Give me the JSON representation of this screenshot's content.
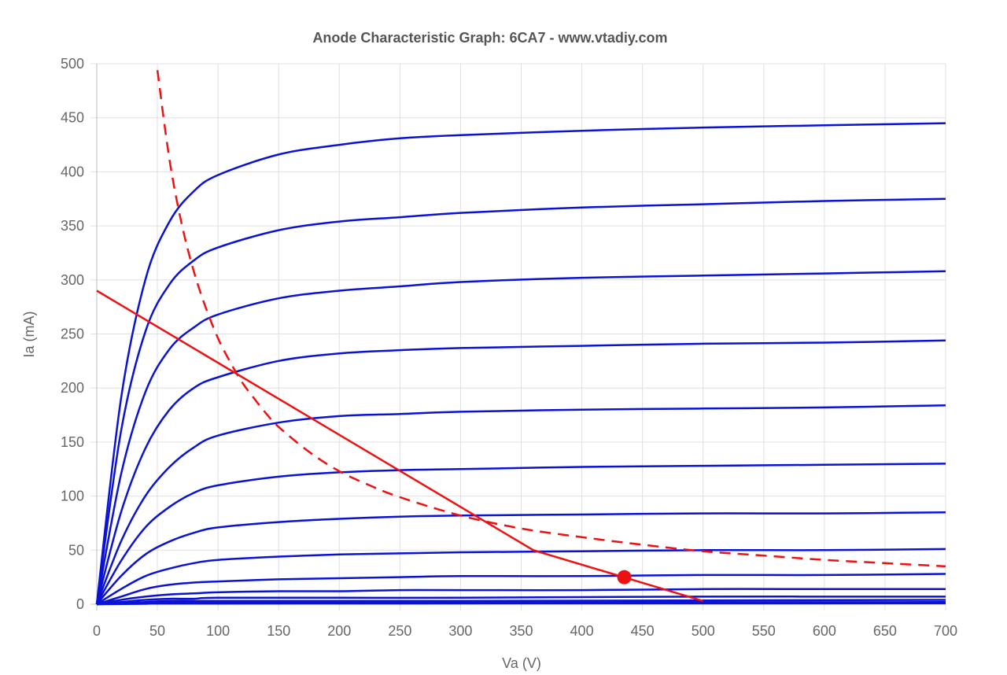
{
  "chart_data": {
    "type": "line",
    "title": "Anode Characteristic Graph: 6CA7 - www.vtadiy.com",
    "xlabel": "Va (V)",
    "ylabel": "Ia (mA)",
    "xlim": [
      0,
      700
    ],
    "ylim": [
      0,
      500
    ],
    "xticks": [
      "0",
      "50",
      "100",
      "150",
      "200",
      "250",
      "300",
      "350",
      "400",
      "450",
      "500",
      "550",
      "600",
      "650",
      "700"
    ],
    "yticks": [
      "0",
      "50",
      "100",
      "150",
      "200",
      "250",
      "300",
      "350",
      "400",
      "450",
      "500"
    ],
    "grid": true,
    "colors": {
      "curves": "#0a12d6",
      "load": "#ee1111",
      "dissipation": "#ee1111"
    },
    "series": [
      {
        "values": [
          [
            0,
            0
          ],
          [
            20,
            190
          ],
          [
            40,
            300
          ],
          [
            60,
            354
          ],
          [
            80,
            382
          ],
          [
            100,
            397
          ],
          [
            150,
            416
          ],
          [
            200,
            425
          ],
          [
            250,
            431
          ],
          [
            300,
            434
          ],
          [
            400,
            438
          ],
          [
            500,
            441
          ],
          [
            600,
            443
          ],
          [
            700,
            445
          ]
        ]
      },
      {
        "values": [
          [
            0,
            0
          ],
          [
            20,
            160
          ],
          [
            40,
            252
          ],
          [
            60,
            296
          ],
          [
            80,
            318
          ],
          [
            100,
            330
          ],
          [
            150,
            346
          ],
          [
            200,
            354
          ],
          [
            250,
            358
          ],
          [
            300,
            362
          ],
          [
            400,
            367
          ],
          [
            500,
            370
          ],
          [
            600,
            373
          ],
          [
            700,
            375
          ]
        ]
      },
      {
        "values": [
          [
            0,
            0
          ],
          [
            20,
            120
          ],
          [
            40,
            196
          ],
          [
            60,
            236
          ],
          [
            80,
            256
          ],
          [
            100,
            268
          ],
          [
            150,
            283
          ],
          [
            200,
            290
          ],
          [
            250,
            294
          ],
          [
            300,
            298
          ],
          [
            400,
            302
          ],
          [
            500,
            304
          ],
          [
            600,
            306
          ],
          [
            700,
            308
          ]
        ]
      },
      {
        "values": [
          [
            0,
            0
          ],
          [
            20,
            85
          ],
          [
            40,
            144
          ],
          [
            60,
            180
          ],
          [
            80,
            200
          ],
          [
            100,
            210
          ],
          [
            150,
            225
          ],
          [
            200,
            232
          ],
          [
            250,
            235
          ],
          [
            300,
            237
          ],
          [
            400,
            239
          ],
          [
            500,
            241
          ],
          [
            600,
            242
          ],
          [
            700,
            244
          ]
        ]
      },
      {
        "values": [
          [
            0,
            0
          ],
          [
            20,
            58
          ],
          [
            40,
            100
          ],
          [
            60,
            127
          ],
          [
            80,
            145
          ],
          [
            100,
            156
          ],
          [
            150,
            168
          ],
          [
            200,
            174
          ],
          [
            250,
            176
          ],
          [
            300,
            178
          ],
          [
            400,
            180
          ],
          [
            500,
            181
          ],
          [
            600,
            182
          ],
          [
            700,
            184
          ]
        ]
      },
      {
        "values": [
          [
            0,
            0
          ],
          [
            20,
            40
          ],
          [
            40,
            71
          ],
          [
            60,
            90
          ],
          [
            80,
            103
          ],
          [
            100,
            110
          ],
          [
            150,
            118
          ],
          [
            200,
            122
          ],
          [
            250,
            124
          ],
          [
            300,
            125
          ],
          [
            400,
            127
          ],
          [
            500,
            128
          ],
          [
            600,
            129
          ],
          [
            700,
            130
          ]
        ]
      },
      {
        "values": [
          [
            0,
            0
          ],
          [
            20,
            26
          ],
          [
            40,
            46
          ],
          [
            60,
            58
          ],
          [
            80,
            66
          ],
          [
            100,
            71
          ],
          [
            150,
            76
          ],
          [
            200,
            79
          ],
          [
            250,
            81
          ],
          [
            300,
            82
          ],
          [
            400,
            83
          ],
          [
            500,
            84
          ],
          [
            600,
            84
          ],
          [
            700,
            85
          ]
        ]
      },
      {
        "values": [
          [
            0,
            0
          ],
          [
            20,
            14
          ],
          [
            40,
            26
          ],
          [
            60,
            33
          ],
          [
            80,
            38
          ],
          [
            100,
            41
          ],
          [
            150,
            44
          ],
          [
            200,
            46
          ],
          [
            250,
            47
          ],
          [
            300,
            48
          ],
          [
            400,
            49
          ],
          [
            500,
            50
          ],
          [
            600,
            50
          ],
          [
            700,
            51
          ]
        ]
      },
      {
        "values": [
          [
            0,
            0
          ],
          [
            20,
            7
          ],
          [
            40,
            14
          ],
          [
            60,
            18
          ],
          [
            80,
            20
          ],
          [
            100,
            21
          ],
          [
            150,
            23
          ],
          [
            200,
            24
          ],
          [
            250,
            25
          ],
          [
            300,
            26
          ],
          [
            400,
            26
          ],
          [
            500,
            27
          ],
          [
            600,
            27
          ],
          [
            700,
            28
          ]
        ]
      },
      {
        "values": [
          [
            0,
            0
          ],
          [
            20,
            4
          ],
          [
            40,
            7
          ],
          [
            60,
            9
          ],
          [
            80,
            10
          ],
          [
            100,
            11
          ],
          [
            150,
            12
          ],
          [
            200,
            12
          ],
          [
            250,
            13
          ],
          [
            300,
            13
          ],
          [
            400,
            13
          ],
          [
            500,
            14
          ],
          [
            600,
            14
          ],
          [
            700,
            14
          ]
        ]
      },
      {
        "values": [
          [
            0,
            0
          ],
          [
            20,
            2
          ],
          [
            40,
            4
          ],
          [
            60,
            5
          ],
          [
            80,
            5
          ],
          [
            100,
            6
          ],
          [
            200,
            6
          ],
          [
            300,
            6
          ],
          [
            500,
            7
          ],
          [
            700,
            7
          ]
        ]
      },
      {
        "values": [
          [
            0,
            0
          ],
          [
            20,
            1
          ],
          [
            40,
            2
          ],
          [
            60,
            3
          ],
          [
            100,
            3
          ],
          [
            300,
            3
          ],
          [
            700,
            4
          ]
        ]
      },
      {
        "values": [
          [
            0,
            0
          ],
          [
            20,
            0.5
          ],
          [
            40,
            1
          ],
          [
            60,
            1.5
          ],
          [
            100,
            1.6
          ],
          [
            700,
            2
          ]
        ]
      },
      {
        "values": [
          [
            0,
            0
          ],
          [
            40,
            0.4
          ],
          [
            100,
            0.6
          ],
          [
            700,
            0.8
          ]
        ]
      }
    ],
    "load_line": [
      [
        0,
        290
      ],
      [
        360,
        50
      ],
      [
        500,
        3
      ]
    ],
    "dissipation_curve": [
      [
        50,
        494
      ],
      [
        60,
        411
      ],
      [
        70,
        352
      ],
      [
        80,
        308
      ],
      [
        90,
        274
      ],
      [
        100,
        246
      ],
      [
        110,
        224
      ],
      [
        120,
        205
      ],
      [
        130,
        190
      ],
      [
        140,
        176
      ],
      [
        150,
        164
      ],
      [
        175,
        141
      ],
      [
        200,
        123
      ],
      [
        225,
        110
      ],
      [
        250,
        99
      ],
      [
        300,
        82
      ],
      [
        350,
        70
      ],
      [
        400,
        62
      ],
      [
        450,
        55
      ],
      [
        500,
        49
      ],
      [
        550,
        45
      ],
      [
        600,
        41
      ],
      [
        650,
        38
      ],
      [
        700,
        35
      ]
    ],
    "operating_point": [
      435,
      25
    ]
  }
}
